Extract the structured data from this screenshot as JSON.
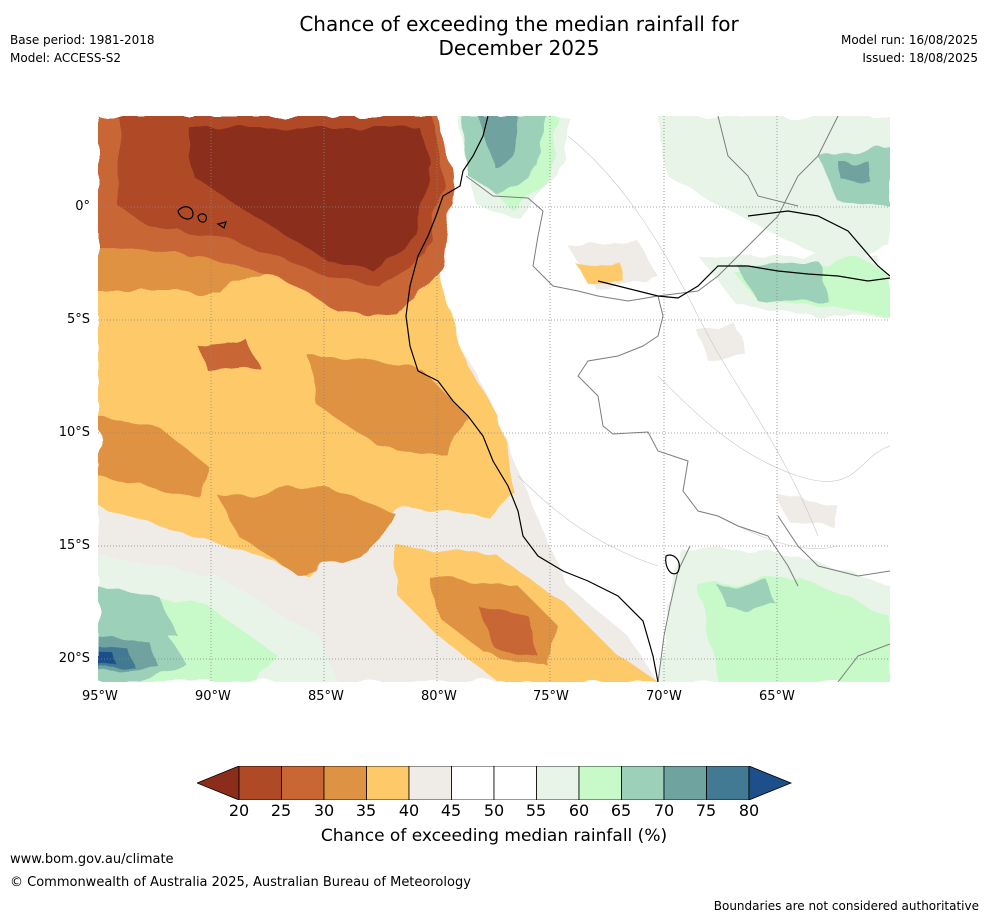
{
  "header": {
    "title_line1": "Chance of exceeding the median rainfall for",
    "title_line2": "December 2025",
    "base_period": "Base period: 1981-2018",
    "model": "Model: ACCESS-S2",
    "model_run": "Model run: 16/08/2025",
    "issued": "Issued: 18/08/2025"
  },
  "map": {
    "lat_labels": [
      "0°",
      "5°S",
      "10°S",
      "15°S",
      "20°S"
    ],
    "lon_labels": [
      "95°W",
      "90°W",
      "85°W",
      "80°W",
      "75°W",
      "70°W",
      "65°W"
    ],
    "extent": {
      "lon": [
        -95,
        -60
      ],
      "lat": [
        -21,
        4
      ]
    }
  },
  "colorbar": {
    "ticks": [
      "20",
      "25",
      "30",
      "35",
      "40",
      "45",
      "50",
      "55",
      "60",
      "65",
      "70",
      "75",
      "80"
    ],
    "colors": [
      "#8c2d1b",
      "#b04a26",
      "#c96634",
      "#de9243",
      "#fec968",
      "#efebe6",
      "#ffffff",
      "#ffffff",
      "#e8f4e8",
      "#c8f9c8",
      "#9cd0b8",
      "#6fa3a0",
      "#437a93",
      "#1d4f8a"
    ],
    "label": "Chance of exceeding median rainfall (%)"
  },
  "footer": {
    "url": "www.bom.gov.au/climate",
    "copyright": "© Commonwealth of Australia 2025, Australian Bureau of Meteorology",
    "disclaimer": "Boundaries are not considered authoritative"
  }
}
